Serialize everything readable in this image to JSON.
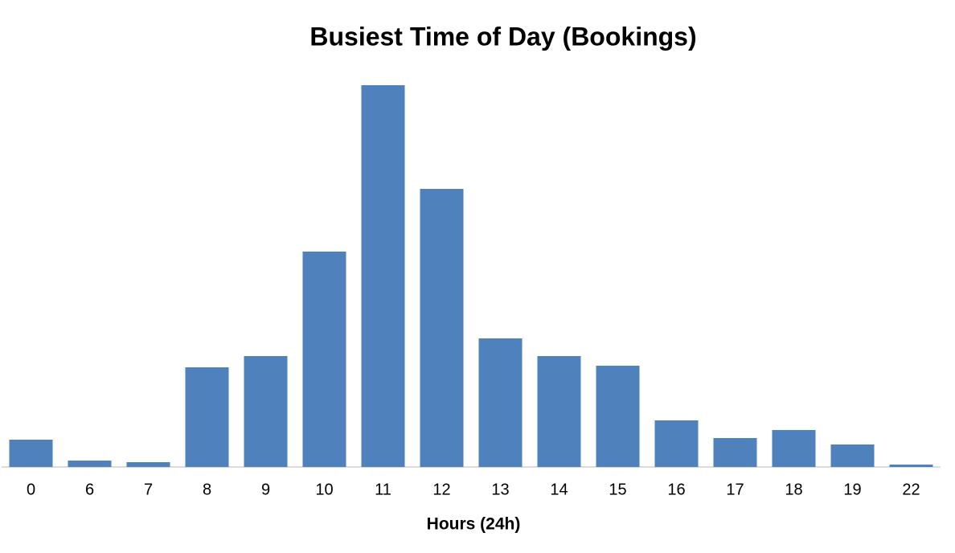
{
  "chart_data": {
    "type": "bar",
    "title": "Busiest Time of Day (Bookings)",
    "x_label": "Hours (24h)",
    "categories": [
      "0",
      "6",
      "7",
      "8",
      "9",
      "10",
      "11",
      "12",
      "13",
      "14",
      "15",
      "16",
      "17",
      "18",
      "19",
      "22"
    ],
    "values": [
      34,
      8,
      6,
      124,
      138,
      268,
      475,
      346,
      160,
      138,
      126,
      58,
      36,
      46,
      28,
      3
    ],
    "color": "#4f81bd"
  }
}
